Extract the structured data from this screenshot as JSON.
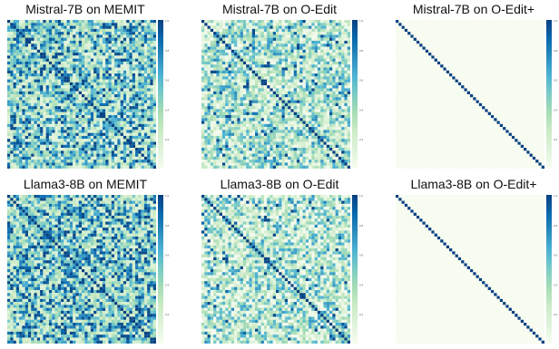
{
  "figure": {
    "grid_rows": 2,
    "grid_cols": 3,
    "colormap": "GnBu",
    "colormap_stops": [
      "#f7fcf0",
      "#e0f3db",
      "#ccebc5",
      "#a8ddb5",
      "#7bccc4",
      "#4eb3d3",
      "#2b8cbe",
      "#0868ac",
      "#084081"
    ]
  },
  "chart_data": [
    {
      "type": "heatmap",
      "title": "Mistral-7B on MEMIT",
      "size": 50,
      "diagonal_value": 1.0,
      "offdiag_mean": 0.42,
      "offdiag_spread": 0.55,
      "seed": 11,
      "vmin": 0,
      "vmax": 1,
      "colorbar_ticks": [
        "1.0",
        "0.8",
        "0.6",
        "0.4",
        "0.2"
      ]
    },
    {
      "type": "heatmap",
      "title": "Mistral-7B on O-Edit",
      "size": 50,
      "diagonal_value": 1.0,
      "offdiag_mean": 0.28,
      "offdiag_spread": 0.45,
      "seed": 23,
      "vmin": 0,
      "vmax": 1,
      "colorbar_ticks": [
        "1.0",
        "0.8",
        "0.6",
        "0.4",
        "0.2"
      ]
    },
    {
      "type": "heatmap",
      "title": "Mistral-7B on O-Edit+",
      "size": 50,
      "diagonal_value": 1.0,
      "offdiag_mean": 0.0,
      "offdiag_spread": 0.0,
      "seed": 37,
      "vmin": 0,
      "vmax": 1,
      "colorbar_ticks": [
        "1.0",
        "0.8",
        "0.6",
        "0.4",
        "0.2"
      ]
    },
    {
      "type": "heatmap",
      "title": "Llama3-8B on MEMIT",
      "size": 50,
      "diagonal_value": 1.0,
      "offdiag_mean": 0.45,
      "offdiag_spread": 0.55,
      "seed": 41,
      "vmin": 0,
      "vmax": 1,
      "colorbar_ticks": [
        "1.0",
        "0.8",
        "0.6",
        "0.4",
        "0.2"
      ]
    },
    {
      "type": "heatmap",
      "title": "Llama3-8B on O-Edit",
      "size": 50,
      "diagonal_value": 1.0,
      "offdiag_mean": 0.26,
      "offdiag_spread": 0.45,
      "seed": 53,
      "vmin": 0,
      "vmax": 1,
      "colorbar_ticks": [
        "1.0",
        "0.8",
        "0.6",
        "0.4",
        "0.2"
      ]
    },
    {
      "type": "heatmap",
      "title": "Llama3-8B on O-Edit+",
      "size": 50,
      "diagonal_value": 1.0,
      "offdiag_mean": 0.0,
      "offdiag_spread": 0.0,
      "seed": 67,
      "vmin": 0,
      "vmax": 1,
      "colorbar_ticks": [
        "1.0",
        "0.8",
        "0.6",
        "0.4",
        "0.2"
      ]
    }
  ]
}
